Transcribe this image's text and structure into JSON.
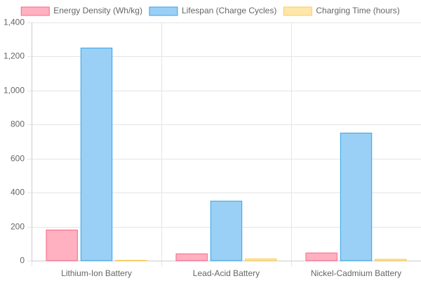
{
  "chart_data": {
    "type": "bar",
    "categories": [
      "Lithium-Ion Battery",
      "Lead-Acid Battery",
      "Nickel-Cadmium Battery"
    ],
    "series": [
      {
        "name": "Energy Density (Wh/kg)",
        "values": [
          180,
          40,
          45
        ],
        "fill": "#ffb1c1",
        "stroke": "#ff6384"
      },
      {
        "name": "Lifespan (Charge Cycles)",
        "values": [
          1250,
          350,
          750
        ],
        "fill": "#9ad0f5",
        "stroke": "#36a2eb"
      },
      {
        "name": "Charging Time (hours)",
        "values": [
          2,
          10,
          8
        ],
        "fill": "#ffe6aa",
        "stroke": "#ffcd56"
      }
    ],
    "ylim": [
      0,
      1400
    ],
    "yticks": [
      "0",
      "200",
      "400",
      "600",
      "800",
      "1,000",
      "1,200",
      "1,400"
    ],
    "ytick_values": [
      0,
      200,
      400,
      600,
      800,
      1000,
      1200,
      1400
    ],
    "grid": true,
    "legend_position": "top"
  }
}
